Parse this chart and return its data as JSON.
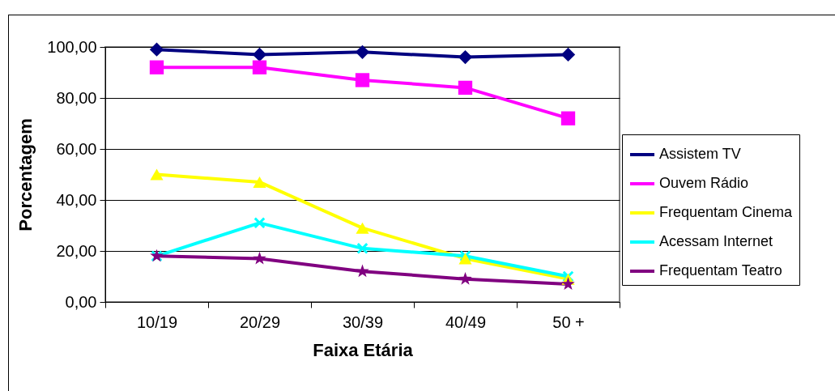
{
  "chart_data": {
    "type": "line",
    "xlabel": "Faixa Etária",
    "ylabel": "Porcentagem",
    "categories": [
      "10/19",
      "20/29",
      "30/39",
      "40/49",
      "50 +"
    ],
    "series": [
      {
        "name": "Assistem TV",
        "color": "#000080",
        "marker": "diamond",
        "values": [
          99,
          97,
          98,
          96,
          97
        ]
      },
      {
        "name": "Ouvem Rádio",
        "color": "#ff00ff",
        "marker": "square",
        "values": [
          92,
          92,
          87,
          84,
          72
        ]
      },
      {
        "name": "Frequentam Cinema",
        "color": "#ffff00",
        "marker": "triangle",
        "values": [
          50,
          47,
          29,
          17,
          9
        ]
      },
      {
        "name": "Acessam Internet",
        "color": "#00ffff",
        "marker": "cross",
        "values": [
          18,
          31,
          21,
          18,
          10
        ]
      },
      {
        "name": "Frequentam Teatro",
        "color": "#800080",
        "marker": "star",
        "values": [
          18,
          17,
          12,
          9,
          7
        ]
      }
    ],
    "ylim": [
      0,
      100
    ],
    "yticks": [
      {
        "value": 0,
        "label": "0,00"
      },
      {
        "value": 20,
        "label": "20,00"
      },
      {
        "value": 40,
        "label": "40,00"
      },
      {
        "value": 60,
        "label": "60,00"
      },
      {
        "value": 80,
        "label": "80,00"
      },
      {
        "value": 100,
        "label": "100,00"
      }
    ],
    "grid": "y",
    "legend": "right",
    "line_style": "solid"
  }
}
